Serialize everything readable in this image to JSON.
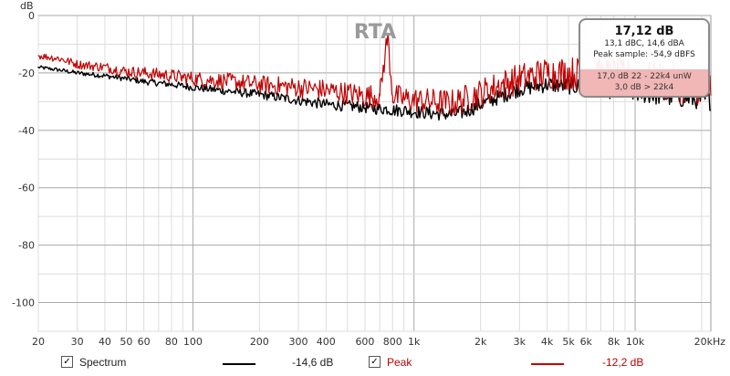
{
  "chart_data": {
    "type": "line",
    "title": "RTA",
    "ylabel": "dB",
    "xlabel": "",
    "x_scale": "log",
    "xlim": [
      20,
      22000
    ],
    "ylim": [
      -110,
      0
    ],
    "grid": true,
    "y_ticks": [
      0,
      -20,
      -40,
      -60,
      -80,
      -100
    ],
    "x_tick_labels": [
      {
        "f": 20,
        "label": "20"
      },
      {
        "f": 30,
        "label": "30"
      },
      {
        "f": 40,
        "label": "40"
      },
      {
        "f": 50,
        "label": "50"
      },
      {
        "f": 60,
        "label": "60"
      },
      {
        "f": 80,
        "label": "80"
      },
      {
        "f": 100,
        "label": "100"
      },
      {
        "f": 200,
        "label": "200"
      },
      {
        "f": 300,
        "label": "300"
      },
      {
        "f": 400,
        "label": "400"
      },
      {
        "f": 600,
        "label": "600"
      },
      {
        "f": 800,
        "label": "800"
      },
      {
        "f": 1000,
        "label": "1k"
      },
      {
        "f": 2000,
        "label": "2k"
      },
      {
        "f": 3000,
        "label": "3k"
      },
      {
        "f": 4000,
        "label": "4k"
      },
      {
        "f": 5000,
        "label": "5k"
      },
      {
        "f": 6000,
        "label": "6k"
      },
      {
        "f": 8000,
        "label": "8k"
      },
      {
        "f": 10000,
        "label": "10k"
      },
      {
        "f": 22000,
        "label": "20kHz"
      }
    ],
    "series": [
      {
        "name": "Spectrum",
        "color": "#000000",
        "x": [
          20,
          25,
          30,
          40,
          50,
          60,
          80,
          100,
          150,
          200,
          300,
          400,
          500,
          600,
          700,
          760,
          800,
          900,
          1000,
          1200,
          1500,
          1700,
          2000,
          2500,
          3000,
          4000,
          5000,
          6000,
          8000,
          10000,
          15000,
          22000
        ],
        "y": [
          -18,
          -19,
          -20,
          -21,
          -22,
          -23,
          -24,
          -25,
          -26.5,
          -27.5,
          -29.5,
          -31,
          -31.5,
          -32,
          -32.5,
          -32.5,
          -33,
          -33,
          -33.5,
          -34,
          -34.5,
          -33.5,
          -31,
          -28,
          -25.5,
          -24,
          -24.5,
          -25,
          -26,
          -27,
          -28.5,
          -29.5
        ]
      },
      {
        "name": "Peak",
        "color": "#c00000",
        "x": [
          20,
          25,
          30,
          40,
          50,
          60,
          80,
          100,
          150,
          200,
          300,
          400,
          500,
          600,
          700,
          760,
          800,
          900,
          1000,
          1200,
          1500,
          1700,
          2000,
          2500,
          3000,
          4000,
          5000,
          6000,
          8000,
          10000,
          15000,
          22000
        ],
        "y": [
          -14,
          -15,
          -17,
          -18,
          -19.5,
          -20,
          -21,
          -22,
          -23,
          -24,
          -25,
          -26,
          -27,
          -28,
          -28,
          -7,
          -28,
          -29,
          -29.5,
          -30,
          -30.5,
          -29,
          -27,
          -24,
          -22,
          -20,
          -20,
          -20.5,
          -21,
          -22,
          -23.5,
          -25
        ]
      }
    ]
  },
  "info_box": {
    "main": "17,12 dB",
    "line1": "13,1 dBC, 14,6 dBA",
    "line2": "Peak sample: -54,9 dBFS",
    "line3": "17,0 dB 22 - 22k4 unW",
    "line4": "3,0 dB > 22k4",
    "band_color": "#f1b6b6"
  },
  "legend": {
    "spectrum": {
      "label": "Spectrum",
      "value": "-14,6 dB",
      "color": "#000000",
      "checked": "✓"
    },
    "peak": {
      "label": "Peak",
      "value": "-12,2 dB",
      "color": "#c00000",
      "checked": "✓"
    }
  }
}
